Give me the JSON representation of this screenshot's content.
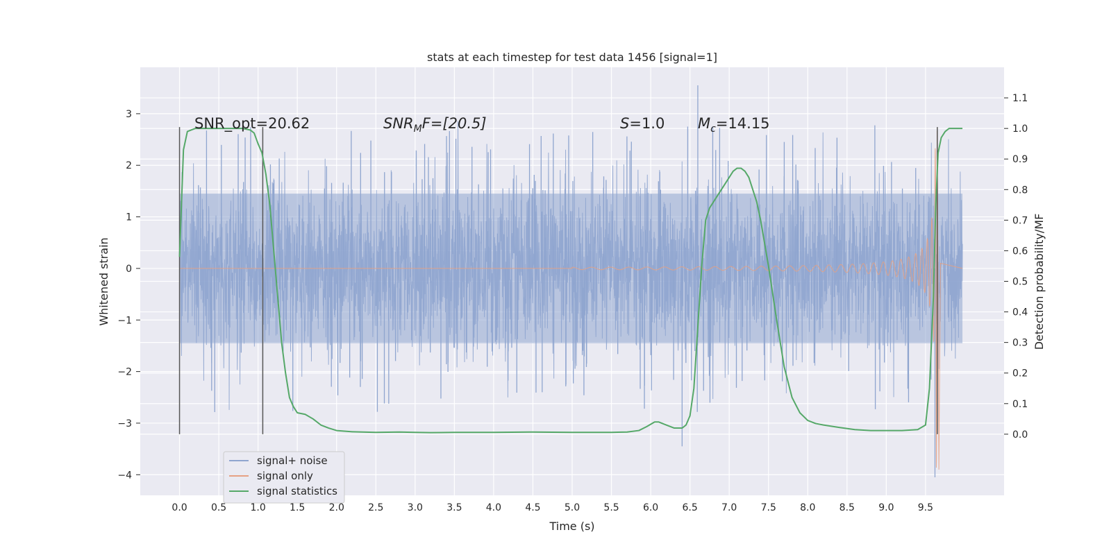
{
  "chart_data": {
    "type": "line",
    "title": "stats at each timestep for test data 1456 [signal=1]",
    "xlabel": "Time (s)",
    "ylabel": "Whitened strain",
    "y2label": "Detection probability/MF",
    "xlim": [
      -0.5,
      10.5
    ],
    "ylim": [
      -4.4,
      3.9
    ],
    "y2lim": [
      -0.2,
      1.2
    ],
    "xticks": [
      0.0,
      0.5,
      1.0,
      1.5,
      2.0,
      2.5,
      3.0,
      3.5,
      4.0,
      4.5,
      5.0,
      5.5,
      6.0,
      6.5,
      7.0,
      7.5,
      8.0,
      8.5,
      9.0,
      9.5
    ],
    "xtick_labels": [
      "0.0",
      "0.5",
      "1.0",
      "1.5",
      "2.0",
      "2.5",
      "3.0",
      "3.5",
      "4.0",
      "4.5",
      "5.0",
      "5.5",
      "6.0",
      "6.5",
      "7.0",
      "7.5",
      "8.0",
      "8.5",
      "9.0",
      "9.5"
    ],
    "yticks": [
      3,
      2,
      1,
      0,
      -1,
      -2,
      -3,
      -4
    ],
    "ytick_labels": [
      "3",
      "2",
      "1",
      "0",
      "−1",
      "−2",
      "−3",
      "−4"
    ],
    "y2ticks": [
      1.1,
      1.0,
      0.9,
      0.8,
      0.7,
      0.6,
      0.5,
      0.4,
      0.3,
      0.2,
      0.1,
      0.0
    ],
    "y2tick_labels": [
      "1.1",
      "1.0",
      "0.9",
      "0.8",
      "0.7",
      "0.6",
      "0.5",
      "0.4",
      "0.3",
      "0.2",
      "0.1",
      "0.0"
    ],
    "legend": {
      "position": "lower-left",
      "entries": [
        {
          "label": "signal+ noise",
          "color": "#8fa5cf"
        },
        {
          "label": "signal only",
          "color": "#e6a183"
        },
        {
          "label": "signal statistics",
          "color": "#55a868"
        }
      ]
    },
    "annotations": {
      "snr_opt": "SNR_opt=20.62",
      "snr_mf_pre": "SNR",
      "snr_mf_sub": "M",
      "snr_mf_post": "F=[20.5]",
      "s_pre": "S",
      "s_post": "=1.0",
      "mc_pre": "M",
      "mc_sub": "c",
      "mc_post": "=14.15"
    },
    "vertical_markers_x": [
      0.0,
      1.06,
      9.65
    ],
    "noise_series": {
      "name": "signal+ noise",
      "x_range": [
        0.0,
        9.97
      ],
      "typical_amplitude": 1.5,
      "max": 3.55,
      "min": -4.05
    },
    "signal_series": {
      "name": "signal only",
      "type": "chirp",
      "onset_x": 5.0,
      "merger_x": 9.65,
      "peak_amplitude": 3.9
    },
    "stat_series": {
      "name": "signal statistics",
      "x": [
        0.0,
        0.05,
        0.1,
        0.15,
        0.2,
        0.3,
        0.4,
        0.6,
        0.8,
        0.9,
        0.95,
        1.0,
        1.05,
        1.1,
        1.15,
        1.2,
        1.25,
        1.3,
        1.35,
        1.4,
        1.45,
        1.5,
        1.6,
        1.7,
        1.8,
        1.9,
        2.0,
        2.2,
        2.5,
        2.8,
        3.0,
        3.2,
        3.5,
        4.0,
        4.5,
        5.0,
        5.5,
        5.7,
        5.85,
        5.95,
        6.05,
        6.1,
        6.2,
        6.3,
        6.4,
        6.45,
        6.5,
        6.55,
        6.6,
        6.65,
        6.7,
        6.75,
        6.8,
        6.9,
        7.0,
        7.05,
        7.1,
        7.15,
        7.2,
        7.25,
        7.3,
        7.35,
        7.4,
        7.5,
        7.6,
        7.7,
        7.8,
        7.9,
        8.0,
        8.1,
        8.2,
        8.4,
        8.6,
        8.8,
        9.0,
        9.2,
        9.4,
        9.5,
        9.55,
        9.6,
        9.63,
        9.66,
        9.7,
        9.75,
        9.8,
        9.9,
        9.97
      ],
      "values": [
        0.58,
        0.93,
        0.99,
        0.995,
        1.0,
        1.0,
        1.0,
        1.0,
        1.0,
        0.995,
        0.985,
        0.95,
        0.92,
        0.85,
        0.75,
        0.6,
        0.45,
        0.3,
        0.2,
        0.12,
        0.09,
        0.07,
        0.065,
        0.05,
        0.03,
        0.02,
        0.012,
        0.008,
        0.006,
        0.007,
        0.006,
        0.005,
        0.006,
        0.006,
        0.007,
        0.006,
        0.006,
        0.007,
        0.012,
        0.025,
        0.04,
        0.04,
        0.03,
        0.02,
        0.02,
        0.03,
        0.06,
        0.15,
        0.35,
        0.55,
        0.7,
        0.74,
        0.76,
        0.8,
        0.84,
        0.86,
        0.87,
        0.87,
        0.86,
        0.84,
        0.8,
        0.76,
        0.7,
        0.55,
        0.38,
        0.22,
        0.12,
        0.07,
        0.045,
        0.035,
        0.03,
        0.022,
        0.015,
        0.012,
        0.012,
        0.012,
        0.015,
        0.03,
        0.15,
        0.45,
        0.75,
        0.92,
        0.97,
        0.99,
        1.0,
        1.0,
        1.0
      ]
    },
    "colors": {
      "background": "#eaeaf2",
      "grid": "#ffffff",
      "noise": "#8fa5cf",
      "signal": "#e6a183",
      "stat": "#55a868",
      "marker": "#555555"
    }
  }
}
